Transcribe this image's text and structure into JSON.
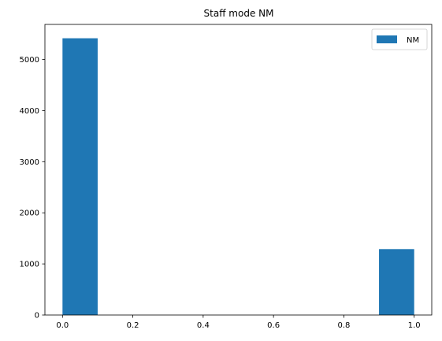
{
  "chart_data": {
    "type": "bar",
    "title": "Staff mode NM",
    "xlabel": "",
    "ylabel": "",
    "xlim": [
      -0.05,
      1.05
    ],
    "ylim": [
      0,
      5687
    ],
    "xticks": [
      0.0,
      0.2,
      0.4,
      0.6,
      0.8,
      1.0
    ],
    "xtick_labels": [
      "0.0",
      "0.2",
      "0.4",
      "0.6",
      "0.8",
      "1.0"
    ],
    "yticks": [
      0,
      1000,
      2000,
      3000,
      4000,
      5000
    ],
    "ytick_labels": [
      "0",
      "1000",
      "2000",
      "3000",
      "4000",
      "5000"
    ],
    "grid": false,
    "legend_position": "top-right",
    "series": [
      {
        "name": "NM",
        "color": "#1f77b4",
        "bins": [
          {
            "x0": 0.0,
            "x1": 0.1,
            "value": 5416
          },
          {
            "x0": 0.1,
            "x1": 0.2,
            "value": 0
          },
          {
            "x0": 0.2,
            "x1": 0.3,
            "value": 0
          },
          {
            "x0": 0.3,
            "x1": 0.4,
            "value": 0
          },
          {
            "x0": 0.4,
            "x1": 0.5,
            "value": 0
          },
          {
            "x0": 0.5,
            "x1": 0.6,
            "value": 0
          },
          {
            "x0": 0.6,
            "x1": 0.7,
            "value": 0
          },
          {
            "x0": 0.7,
            "x1": 0.8,
            "value": 0
          },
          {
            "x0": 0.8,
            "x1": 0.9,
            "value": 0
          },
          {
            "x0": 0.9,
            "x1": 1.0,
            "value": 1290
          }
        ]
      }
    ]
  }
}
